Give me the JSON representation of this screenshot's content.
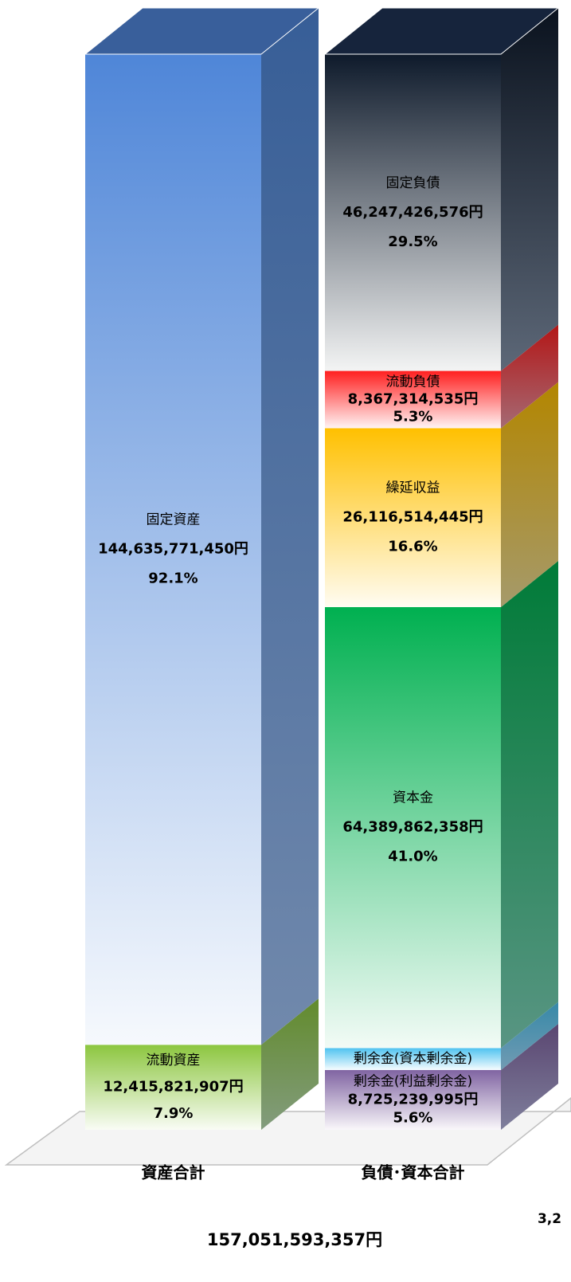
{
  "chart_data": {
    "type": "bar3d_stacked",
    "categories": [
      "資産合計",
      "負債･資本合計"
    ],
    "total_label": "157,051,593,357円",
    "cut_label": "3,2",
    "series": [
      {
        "name": "流動資産",
        "color": "#8cc63f",
        "values": [
          12415821907,
          null
        ],
        "value_labels": [
          "12,415,821,907円",
          null
        ],
        "percent_labels": [
          "7.9%",
          null
        ]
      },
      {
        "name": "固定資産",
        "color": "#4f86d8",
        "values": [
          144635771450,
          null
        ],
        "value_labels": [
          "144,635,771,450円",
          null
        ],
        "percent_labels": [
          "92.1%",
          null
        ]
      },
      {
        "name": "剰余金(利益剰余金)",
        "color": "#8064a2",
        "values": [
          null,
          8725239995
        ],
        "value_labels": [
          null,
          "8,725,239,995円"
        ],
        "percent_labels": [
          null,
          "5.6%"
        ]
      },
      {
        "name": "剰余金(資本剰余金)",
        "color": "#4fc3f0",
        "values": [
          null,
          3205235448
        ],
        "value_labels": [
          null,
          null
        ],
        "percent_labels": [
          null,
          null
        ]
      },
      {
        "name": "資本金",
        "color": "#00b050",
        "values": [
          null,
          64389862358
        ],
        "value_labels": [
          null,
          "64,389,862,358円"
        ],
        "percent_labels": [
          null,
          "41.0%"
        ]
      },
      {
        "name": "繰延収益",
        "color": "#ffc000",
        "values": [
          null,
          26116514445
        ],
        "value_labels": [
          null,
          "26,116,514,445円"
        ],
        "percent_labels": [
          null,
          "16.6%"
        ]
      },
      {
        "name": "流動負債",
        "color": "#ff1f1f",
        "values": [
          null,
          8367314535
        ],
        "value_labels": [
          null,
          "8,367,314,535円"
        ],
        "percent_labels": [
          null,
          "5.3%"
        ]
      },
      {
        "name": "固定負債",
        "color": "#0e1a2b",
        "values": [
          null,
          46247426576
        ],
        "value_labels": [
          null,
          "46,247,426,576円"
        ],
        "percent_labels": [
          null,
          "29.5%"
        ]
      }
    ]
  }
}
